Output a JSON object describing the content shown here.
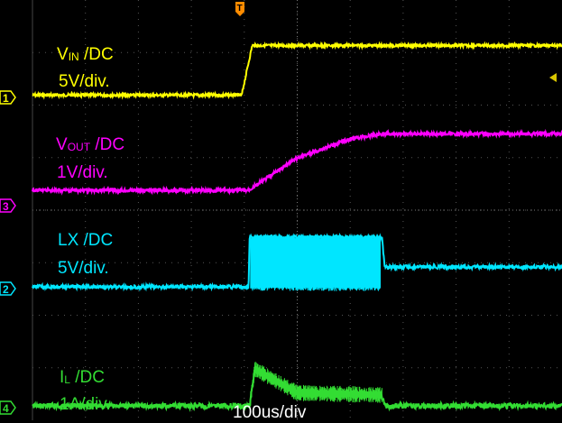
{
  "chart_data": {
    "type": "line",
    "title": "",
    "timebase": "100us/div",
    "xlim": [
      0,
      1000
    ],
    "x_unit": "us",
    "grid": true,
    "trigger_marker": "T",
    "channels": [
      {
        "id": "1",
        "name_main": "V",
        "name_sub": "IN",
        "coupling": "/DC",
        "scale": "5V/div.",
        "color": "#ffff00"
      },
      {
        "id": "3",
        "name_main": "V",
        "name_sub": "OUT",
        "coupling": "/DC",
        "scale": "1V/div.",
        "color": "#ff00ff"
      },
      {
        "id": "2",
        "name_main": "LX",
        "name_sub": "",
        "coupling": "/DC",
        "scale": "5V/div.",
        "color": "#00e6ff"
      },
      {
        "id": "4",
        "name_main": "I",
        "name_sub": "L",
        "coupling": "/DC",
        "scale": "1A/div.",
        "color": "#33dd33"
      }
    ],
    "series": [
      {
        "name": "VIN",
        "unit": "div",
        "x": [
          0,
          395,
          415,
          1000
        ],
        "y": [
          0.05,
          0.05,
          1.15,
          1.15
        ]
      },
      {
        "name": "VOUT",
        "unit": "div",
        "x": [
          0,
          408,
          500,
          600,
          660,
          1000
        ],
        "y": [
          0.05,
          0.05,
          1.0,
          1.55,
          1.7,
          1.7
        ]
      },
      {
        "name": "LX",
        "unit": "div",
        "x": [
          0,
          408,
          410,
          660,
          665,
          1000
        ],
        "y": [
          0,
          0,
          1.0,
          1.0,
          0.4,
          0.4
        ]
      },
      {
        "name": "IL",
        "unit": "div",
        "x": [
          0,
          410,
          420,
          500,
          660,
          665,
          1000
        ],
        "y": [
          0,
          0,
          0.85,
          0.3,
          0.25,
          0,
          0
        ]
      }
    ]
  }
}
